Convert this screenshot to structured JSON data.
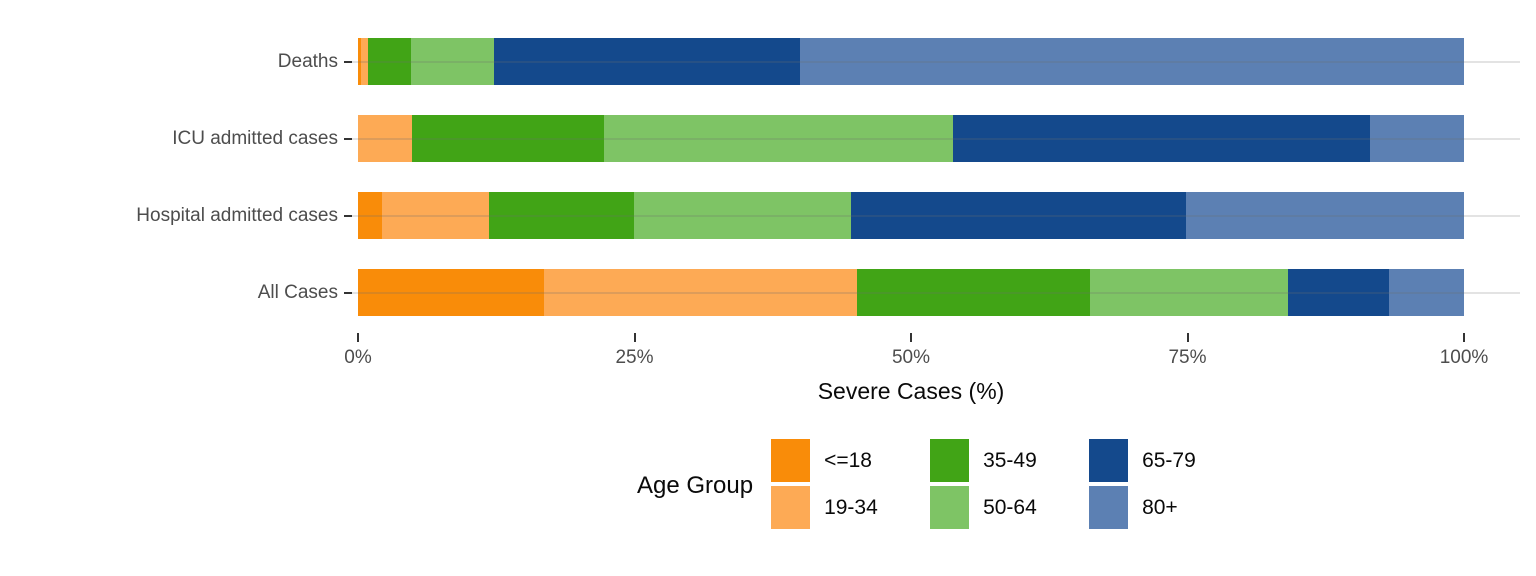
{
  "chart_data": {
    "type": "bar",
    "stacked": true,
    "orientation": "horizontal",
    "title": "",
    "xlabel": "Severe Cases (%)",
    "legend_title": "Age Group",
    "legend_position": "bottom",
    "grid": "horizontal-only",
    "xlim": [
      0,
      100
    ],
    "x_ticks": [
      {
        "value": 0,
        "label": "0%"
      },
      {
        "value": 25,
        "label": "25%"
      },
      {
        "value": 50,
        "label": "50%"
      },
      {
        "value": 75,
        "label": "75%"
      },
      {
        "value": 100,
        "label": "100%"
      }
    ],
    "categories": [
      "Deaths",
      "ICU admitted cases",
      "Hospital admitted cases",
      "All Cases"
    ],
    "series": [
      {
        "name": "<=18",
        "color": "#F98C09",
        "values": [
          0.3,
          0.0,
          2.2,
          16.8
        ]
      },
      {
        "name": "19-34",
        "color": "#FDAA55",
        "values": [
          0.6,
          4.9,
          9.6,
          28.3
        ]
      },
      {
        "name": "35-49",
        "color": "#41A416",
        "values": [
          3.9,
          17.3,
          13.2,
          21.1
        ]
      },
      {
        "name": "50-64",
        "color": "#7EC465",
        "values": [
          7.5,
          31.6,
          19.6,
          17.9
        ]
      },
      {
        "name": "65-79",
        "color": "#14498C",
        "values": [
          27.7,
          37.7,
          30.3,
          9.1
        ]
      },
      {
        "name": "80+",
        "color": "#5C80B3",
        "values": [
          60.0,
          8.5,
          25.1,
          6.8
        ]
      }
    ],
    "legend_columns": [
      [
        "<=18",
        "19-34"
      ],
      [
        "35-49",
        "50-64"
      ],
      [
        "65-79",
        "80+"
      ]
    ]
  }
}
